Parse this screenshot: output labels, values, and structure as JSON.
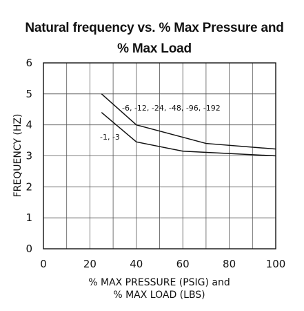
{
  "chart_data": {
    "type": "line",
    "title_line1": "Natural frequency vs. % Max Pressure and",
    "title_line2": "% Max Load",
    "xlabel_line1": "% MAX PRESSURE (PSIG) and",
    "xlabel_line2": "% MAX LOAD (LBS)",
    "ylabel": "FREQUENCY (HZ)",
    "xlim": [
      0,
      100
    ],
    "ylim": [
      0,
      6
    ],
    "xticks": [
      "0",
      "20",
      "40",
      "60",
      "80",
      "100"
    ],
    "yticks": [
      "0",
      "1",
      "2",
      "3",
      "4",
      "5",
      "6"
    ],
    "x_gridlines": [
      10,
      20,
      30,
      40,
      50,
      60,
      70,
      80,
      90
    ],
    "y_gridlines": [
      1,
      2,
      3,
      4,
      5
    ],
    "grid": true,
    "series": [
      {
        "name": "-6, -12, -24, -48, -96, -192",
        "x": [
          25,
          40,
          70,
          100
        ],
        "y": [
          5.0,
          4.0,
          3.4,
          3.22
        ]
      },
      {
        "name": "-1, -3",
        "x": [
          25,
          40,
          60,
          100
        ],
        "y": [
          4.4,
          3.45,
          3.15,
          3.0
        ]
      }
    ]
  }
}
